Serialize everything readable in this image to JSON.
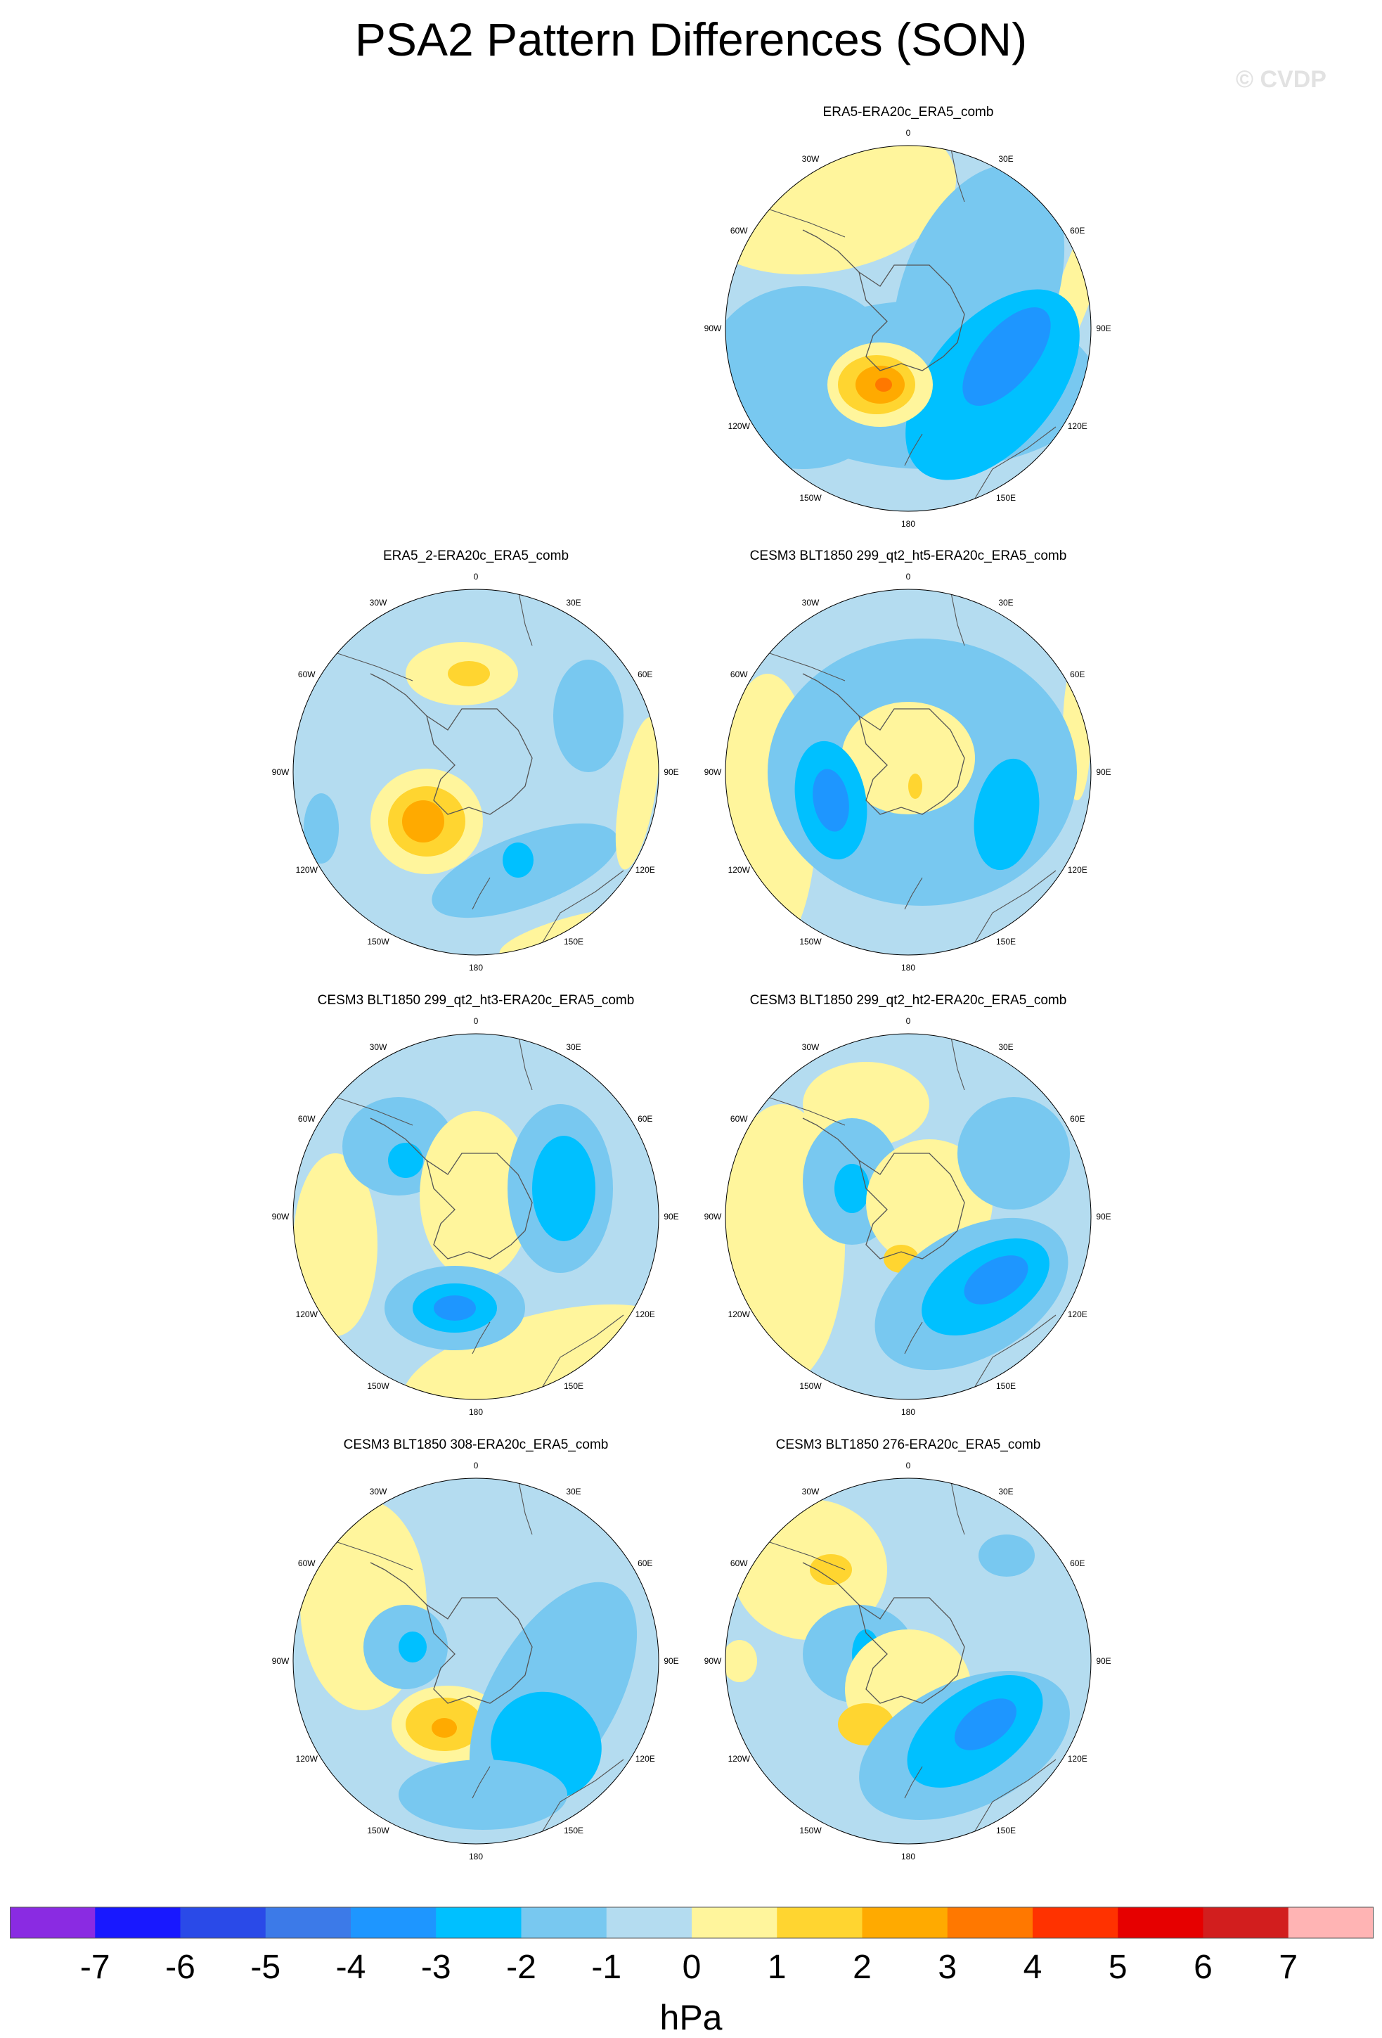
{
  "title": "PSA2 Pattern Differences (SON)",
  "watermark": "© CVDP",
  "units": "hPa",
  "lon_labels": [
    "0",
    "30E",
    "60E",
    "90E",
    "120E",
    "150E",
    "180",
    "150W",
    "120W",
    "90W",
    "60W",
    "30W"
  ],
  "panels": [
    {
      "title": "ERA5-ERA20c_ERA5_comb"
    },
    {
      "title": "ERA5_2-ERA20c_ERA5_comb"
    },
    {
      "title": "CESM3 BLT1850 299_qt2_ht5-ERA20c_ERA5_comb"
    },
    {
      "title": "CESM3 BLT1850 299_qt2_ht3-ERA20c_ERA5_comb"
    },
    {
      "title": "CESM3 BLT1850 299_qt2_ht2-ERA20c_ERA5_comb"
    },
    {
      "title": "CESM3 BLT1850 308-ERA20c_ERA5_comb"
    },
    {
      "title": "CESM3 BLT1850 276-ERA20c_ERA5_comb"
    }
  ],
  "colorbar": {
    "labels": [
      "-7",
      "-6",
      "-5",
      "-4",
      "-3",
      "-2",
      "-1",
      "0",
      "1",
      "2",
      "3",
      "4",
      "5",
      "6",
      "7"
    ],
    "colors": [
      "#8a2be2",
      "#1818ff",
      "#2a4ae8",
      "#3c7ae8",
      "#1e96ff",
      "#00c0ff",
      "#78c8f0",
      "#b4dcf0",
      "#fff59c",
      "#ffd530",
      "#ffaa00",
      "#ff7800",
      "#ff3200",
      "#e60000",
      "#d21e1e",
      "#ffb4b4"
    ]
  },
  "palette": {
    "ocean_bg": "#b4dcf0",
    "n1": "#78c8f0",
    "n2": "#00c0ff",
    "n3": "#1e96ff",
    "p1": "#fff59c",
    "p2": "#ffd530",
    "p3": "#ffaa00",
    "p4": "#ff7800"
  }
}
